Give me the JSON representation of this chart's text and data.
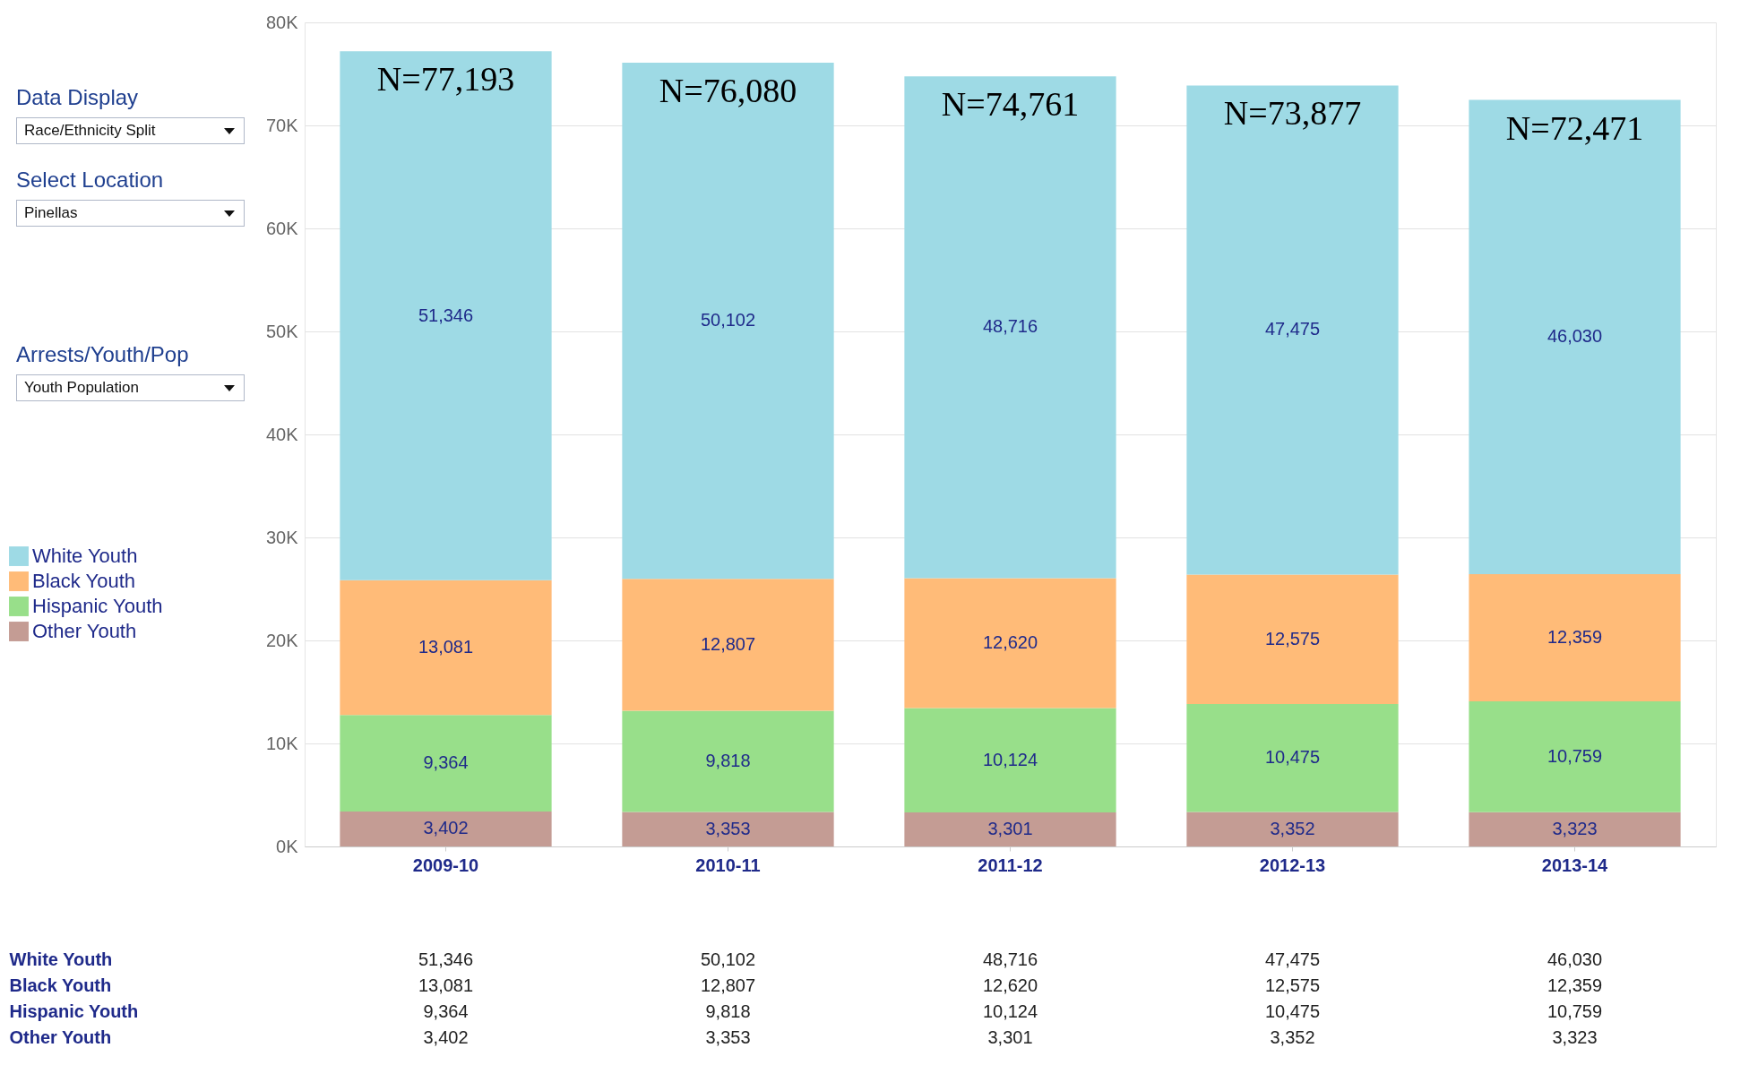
{
  "chart_data": {
    "type": "bar",
    "stacked": true,
    "categories": [
      "2009-10",
      "2010-11",
      "2011-12",
      "2012-13",
      "2013-14"
    ],
    "series": [
      {
        "name": "Other Youth",
        "color": "#c49c94",
        "values": [
          3402,
          3353,
          3301,
          3352,
          3323
        ],
        "value_labels": [
          "3,402",
          "3,353",
          "3,301",
          "3,352",
          "3,323"
        ]
      },
      {
        "name": "Hispanic Youth",
        "color": "#98df8a",
        "values": [
          9364,
          9818,
          10124,
          10475,
          10759
        ],
        "value_labels": [
          "9,364",
          "9,818",
          "10,124",
          "10,475",
          "10,759"
        ]
      },
      {
        "name": "Black Youth",
        "color": "#ffbb78",
        "values": [
          13081,
          12807,
          12620,
          12575,
          12359
        ],
        "value_labels": [
          "13,081",
          "12,807",
          "12,620",
          "12,575",
          "12,359"
        ]
      },
      {
        "name": "White Youth",
        "color": "#9edae5",
        "values": [
          51346,
          50102,
          48716,
          47475,
          46030
        ],
        "value_labels": [
          "51,346",
          "50,102",
          "48,716",
          "47,475",
          "46,030"
        ]
      }
    ],
    "ylim": [
      0,
      80000
    ],
    "yticks": [
      {
        "value": 0,
        "label": "0K"
      },
      {
        "value": 10000,
        "label": "10K"
      },
      {
        "value": 20000,
        "label": "20K"
      },
      {
        "value": 30000,
        "label": "30K"
      },
      {
        "value": 40000,
        "label": "40K"
      },
      {
        "value": 50000,
        "label": "50K"
      },
      {
        "value": 60000,
        "label": "60K"
      },
      {
        "value": 70000,
        "label": "70K"
      },
      {
        "value": 80000,
        "label": "80K"
      }
    ],
    "grid": "y",
    "legend": "left",
    "totals": [
      "N=77,193",
      "N=76,080",
      "N=74,761",
      "N=73,877",
      "N=72,471"
    ],
    "annotations": [
      "Data Display",
      "Race/Ethnicity Split",
      "Select Location",
      "Pinellas",
      "Arrests/Youth/Pop",
      "Youth Population"
    ]
  }
}
